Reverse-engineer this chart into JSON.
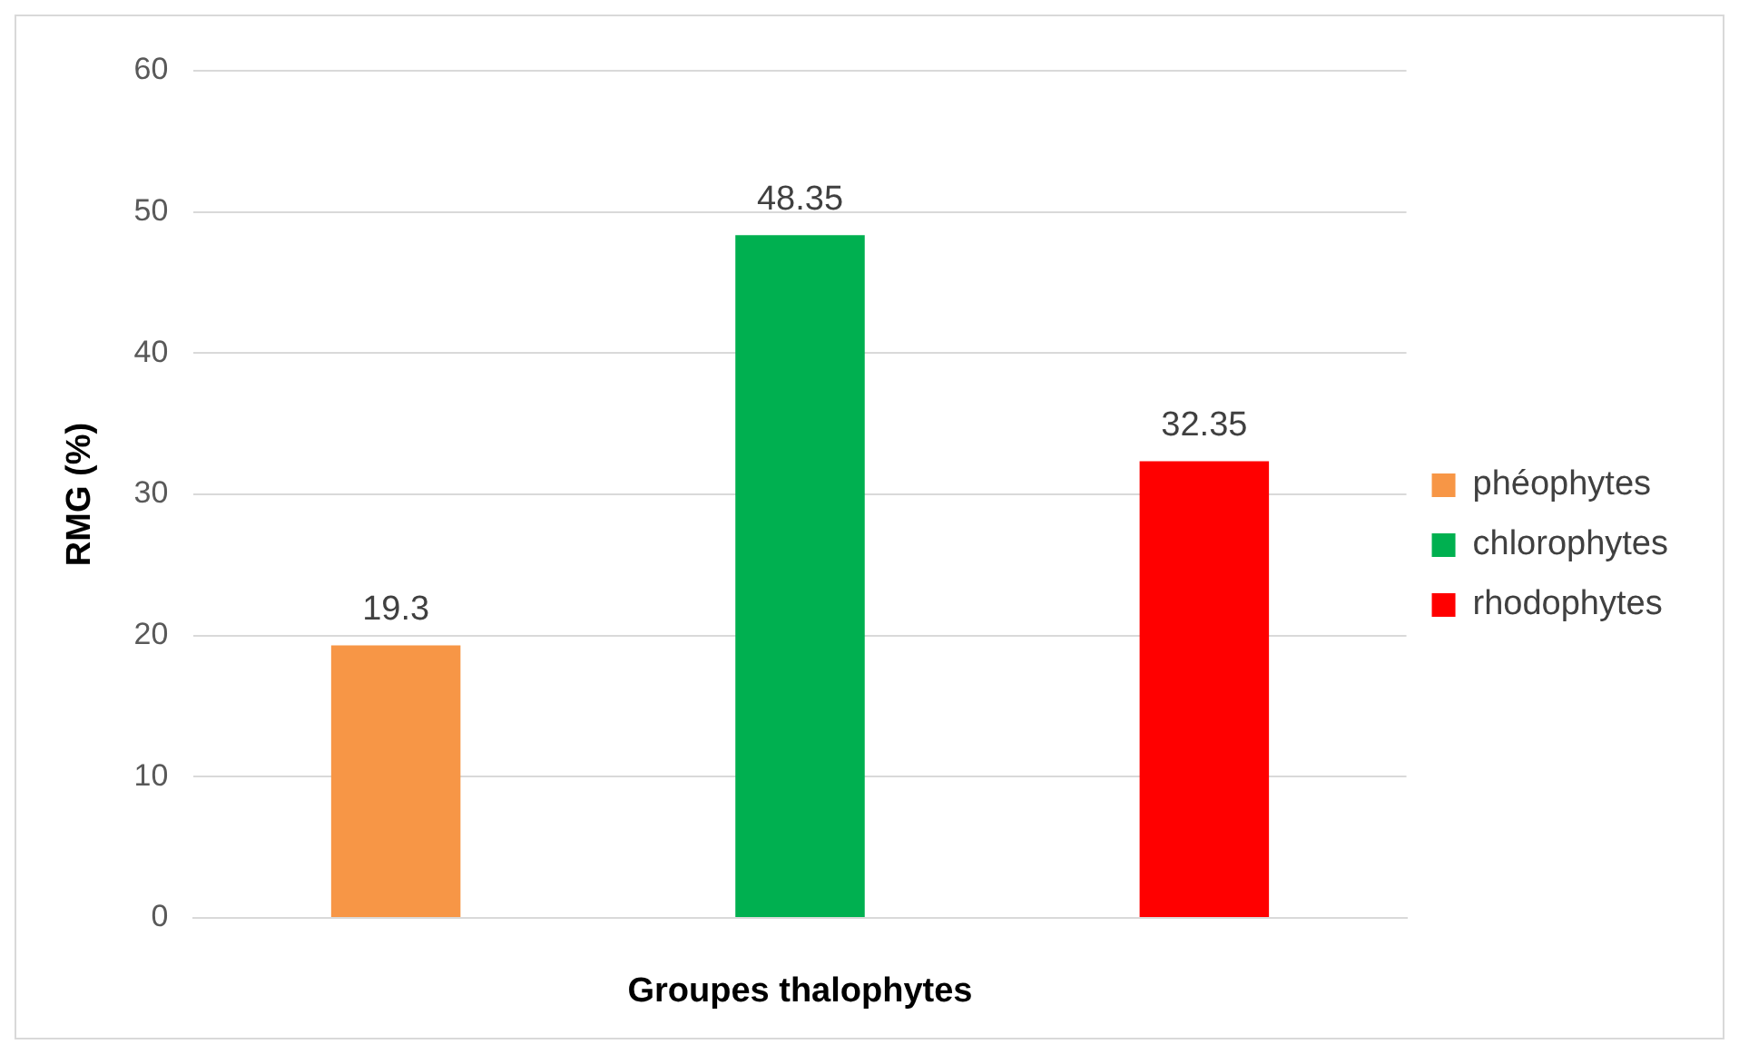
{
  "chart_data": {
    "type": "bar",
    "xlabel": "Groupes thalophytes",
    "ylabel": "RMG (%)",
    "categories": [
      null
    ],
    "series": [
      {
        "name": "phéophytes",
        "color": "#f79646",
        "values": [
          19.3
        ]
      },
      {
        "name": "chlorophytes",
        "color": "#00b050",
        "values": [
          48.35
        ]
      },
      {
        "name": "rhodophytes",
        "color": "#ff0000",
        "values": [
          32.35
        ]
      }
    ],
    "ylim": [
      0,
      60
    ],
    "yticks": [
      0,
      10,
      20,
      30,
      40,
      50,
      60
    ],
    "grid": "y",
    "legend": "right",
    "data_labels": true
  }
}
